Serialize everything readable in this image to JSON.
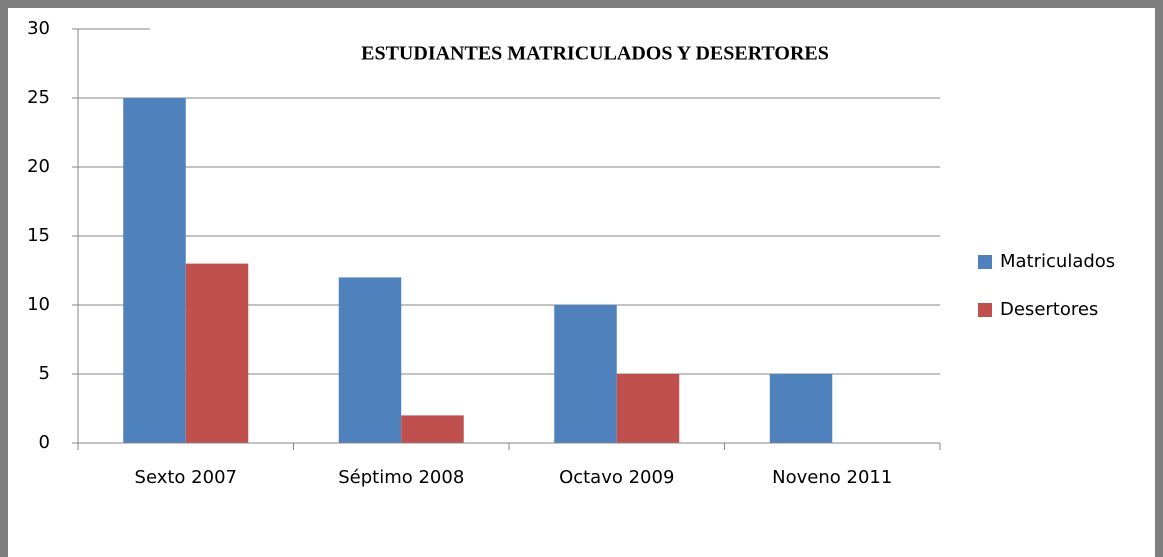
{
  "chart_data": {
    "type": "bar",
    "title": "ESTUDIANTES MATRICULADOS Y DESERTORES",
    "categories": [
      "Sexto 2007",
      "Séptimo 2008",
      "Octavo 2009",
      "Noveno 2011"
    ],
    "series": [
      {
        "name": "Matriculados",
        "color": "#4f81bd",
        "values": [
          25,
          12,
          10,
          5
        ]
      },
      {
        "name": "Desertores",
        "color": "#c0504d",
        "values": [
          13,
          2,
          5,
          0
        ]
      }
    ],
    "ylim": [
      0,
      30
    ],
    "yticks": [
      0,
      5,
      10,
      15,
      20,
      25,
      30
    ],
    "grid": true,
    "legend": "right"
  }
}
